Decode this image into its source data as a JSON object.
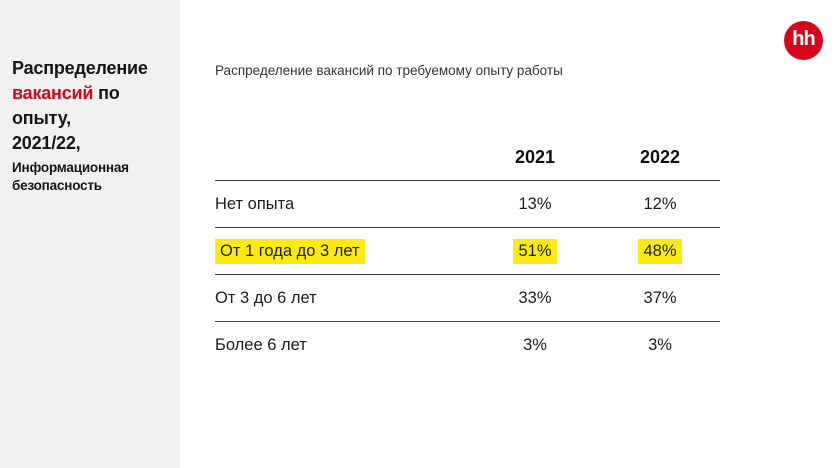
{
  "sidebar": {
    "title": {
      "line1": "Распределение",
      "line2_accent": "вакансий",
      "line2_rest": "по",
      "line3": "опыту,",
      "line4": "2021/22,"
    },
    "subtitle": {
      "line1": "Информационная",
      "line2": "безопасность"
    }
  },
  "logo": {
    "text": "hh"
  },
  "main": {
    "table_title": "Распределение вакансий по требуемому опыту работы"
  },
  "chart_data": {
    "type": "table",
    "title": "Распределение вакансий по требуемому опыту работы",
    "columns": [
      "2021",
      "2022"
    ],
    "rows": [
      {
        "label": "Нет опыта",
        "values": [
          "13%",
          "12%"
        ],
        "highlighted": false
      },
      {
        "label": "От 1 года до 3 лет",
        "values": [
          "51%",
          "48%"
        ],
        "highlighted": true
      },
      {
        "label": "От 3 до 6 лет",
        "values": [
          "33%",
          "37%"
        ],
        "highlighted": false
      },
      {
        "label": "Более 6 лет",
        "values": [
          "3%",
          "3%"
        ],
        "highlighted": false
      }
    ],
    "layout_hints": {
      "highlight_style": "yellow marker on label and both values of highlighted row",
      "grid": "horizontal rules between rows, none after last row"
    }
  },
  "colors": {
    "accent_red": "#d6061b",
    "highlight_yellow": "#fcea11",
    "sidebar_bg": "#f1f1f1",
    "rule_gray": "#3f3f3f"
  }
}
